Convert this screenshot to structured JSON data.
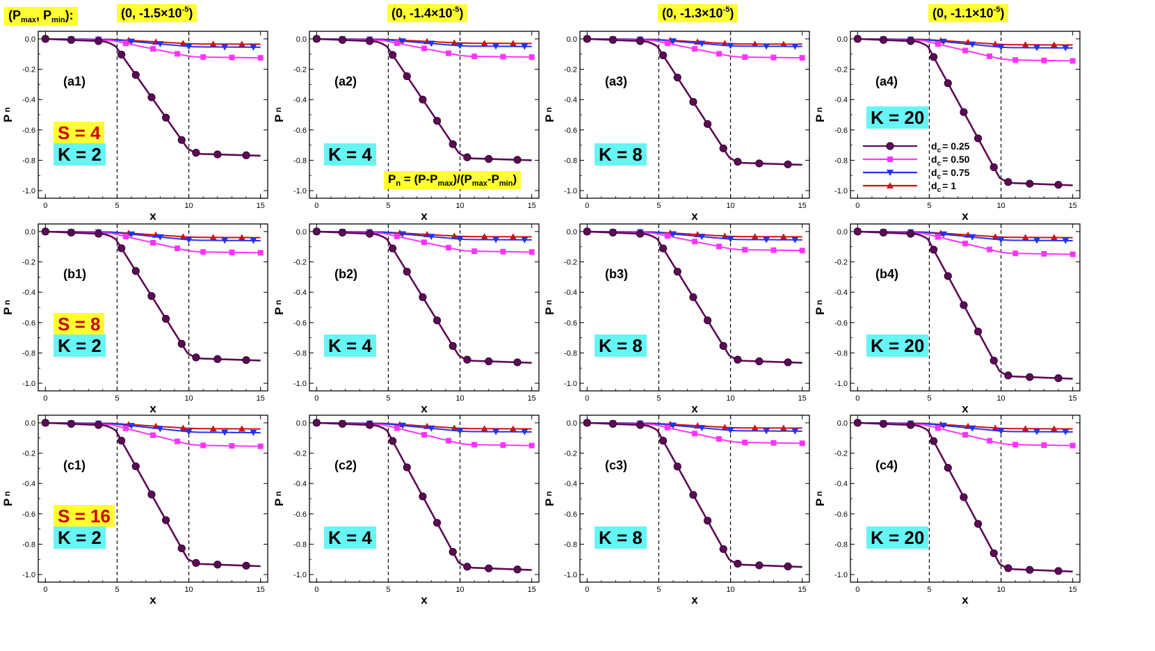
{
  "header": {
    "pair_label_main": "(P",
    "pair_label_max_sub": "max",
    "pair_label_mid": ", P",
    "pair_label_min_sub": "min",
    "pair_label_end": "):",
    "columns": [
      {
        "text": "(0, -1.5×10",
        "exp": "-5",
        "close": ")"
      },
      {
        "text": "(0, -1.4×10",
        "exp": "-5",
        "close": ")"
      },
      {
        "text": "(0, -1.3×10",
        "exp": "-5",
        "close": ")"
      },
      {
        "text": "(0, -1.1×10",
        "exp": "-5",
        "close": ")"
      }
    ]
  },
  "formula": {
    "p": "P",
    "n_sub": "n",
    "mid1": " = (P-P",
    "max_sub": "max",
    "mid2": ")/(P",
    "max_sub2": "max",
    "mid3": "-P",
    "min_sub": "min",
    "end": ")"
  },
  "row_tags": {
    "S": [
      "S = 4",
      "S = 8",
      "S = 16"
    ],
    "K": [
      "K = 2",
      "K = 4",
      "K = 8",
      "K = 20"
    ]
  },
  "legend": {
    "d_label": "d",
    "sub": "c",
    "series": [
      "= 0.25",
      "= 0.50",
      "= 0.75",
      "= 1"
    ]
  },
  "colors": {
    "s025": "#5c0a55",
    "s050": "#ff33ff",
    "s075": "#2233ee",
    "s100": "#cc1111",
    "highlight_yellow": "#ffff33",
    "highlight_cyan": "#66f5f5",
    "s_text": "#cc0000"
  },
  "chart_data": {
    "type": "line",
    "layout": "3x4 grid of small multiples",
    "xlabel": "x",
    "ylabel": "Pn",
    "xlim": [
      -0.5,
      15.5
    ],
    "ylim": [
      -1.05,
      0.05
    ],
    "xticks": [
      0,
      5,
      10,
      15
    ],
    "yticks": [
      0.0,
      -0.2,
      -0.4,
      -0.6,
      -0.8,
      -1.0
    ],
    "ytick_labels": [
      "0.0",
      "-0.2",
      "-0.4",
      "-0.6",
      "-0.8",
      "-1.0"
    ],
    "reference_lines_x": [
      5,
      10
    ],
    "series_names": [
      "dc = 0.25",
      "dc = 0.50",
      "dc = 0.75",
      "dc = 1"
    ],
    "panels": [
      {
        "label": "(a1)",
        "row": 0,
        "col": 0,
        "final": [
          -0.77,
          -0.125,
          -0.055,
          -0.035
        ]
      },
      {
        "label": "(a2)",
        "row": 0,
        "col": 1,
        "final": [
          -0.8,
          -0.12,
          -0.05,
          -0.03
        ]
      },
      {
        "label": "(a3)",
        "row": 0,
        "col": 2,
        "final": [
          -0.83,
          -0.125,
          -0.05,
          -0.035
        ]
      },
      {
        "label": "(a4)",
        "row": 0,
        "col": 3,
        "final": [
          -0.965,
          -0.145,
          -0.06,
          -0.04
        ]
      },
      {
        "label": "(b1)",
        "row": 1,
        "col": 0,
        "final": [
          -0.85,
          -0.14,
          -0.06,
          -0.04
        ]
      },
      {
        "label": "(b2)",
        "row": 1,
        "col": 1,
        "final": [
          -0.865,
          -0.135,
          -0.055,
          -0.035
        ]
      },
      {
        "label": "(b3)",
        "row": 1,
        "col": 2,
        "final": [
          -0.865,
          -0.125,
          -0.055,
          -0.035
        ]
      },
      {
        "label": "(b4)",
        "row": 1,
        "col": 3,
        "final": [
          -0.97,
          -0.15,
          -0.06,
          -0.04
        ]
      },
      {
        "label": "(c1)",
        "row": 2,
        "col": 0,
        "final": [
          -0.945,
          -0.155,
          -0.065,
          -0.04
        ]
      },
      {
        "label": "(c2)",
        "row": 2,
        "col": 1,
        "final": [
          -0.97,
          -0.15,
          -0.06,
          -0.04
        ]
      },
      {
        "label": "(c3)",
        "row": 2,
        "col": 2,
        "final": [
          -0.95,
          -0.135,
          -0.055,
          -0.035
        ]
      },
      {
        "label": "(c4)",
        "row": 2,
        "col": 3,
        "final": [
          -0.98,
          -0.15,
          -0.06,
          -0.04
        ]
      }
    ]
  }
}
